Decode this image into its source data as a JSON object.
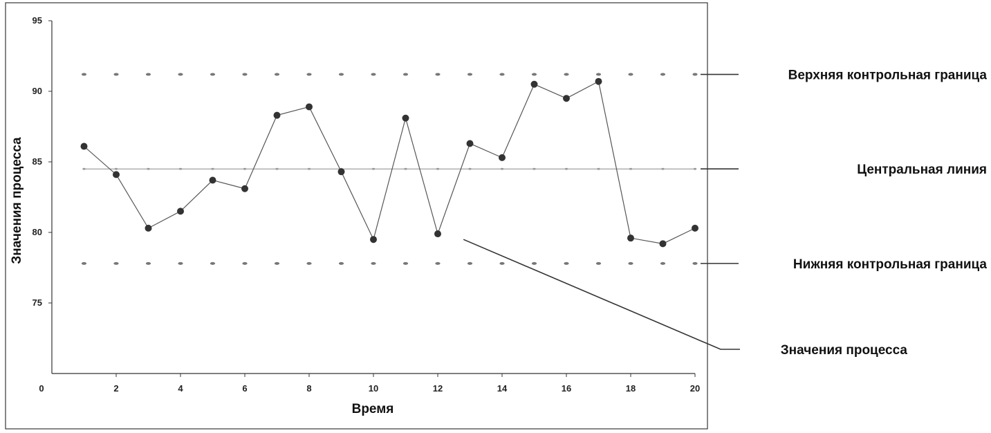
{
  "chart_data": {
    "type": "line",
    "title": "",
    "xlabel": "Время",
    "ylabel": "Значения процесса",
    "xlim": [
      0,
      20
    ],
    "ylim": [
      70,
      95
    ],
    "x_ticks": [
      "0",
      "2",
      "4",
      "6",
      "8",
      "10",
      "12",
      "14",
      "16",
      "18",
      "20"
    ],
    "y_ticks": [
      "95",
      "90",
      "85",
      "80",
      "75"
    ],
    "grid": false,
    "series": [
      {
        "name": "Значения процесса",
        "style": "line-with-markers",
        "color": "#555555",
        "x": [
          1,
          2,
          3,
          4,
          5,
          6,
          7,
          8,
          9,
          10,
          11,
          12,
          13,
          14,
          15,
          16,
          17,
          18,
          19,
          20
        ],
        "values": [
          86.1,
          84.1,
          80.3,
          81.5,
          83.7,
          83.1,
          88.3,
          88.9,
          84.3,
          79.5,
          88.1,
          79.9,
          86.3,
          85.3,
          90.5,
          89.5,
          90.7,
          79.6,
          79.2,
          80.3
        ]
      },
      {
        "name": "Верхняя контрольная граница",
        "style": "dotted",
        "color": "#777777",
        "x": [
          1,
          2,
          3,
          4,
          5,
          6,
          7,
          8,
          9,
          10,
          11,
          12,
          13,
          14,
          15,
          16,
          17,
          18,
          19,
          20
        ],
        "values": [
          91.2,
          91.2,
          91.2,
          91.2,
          91.2,
          91.2,
          91.2,
          91.2,
          91.2,
          91.2,
          91.2,
          91.2,
          91.2,
          91.2,
          91.2,
          91.2,
          91.2,
          91.2,
          91.2,
          91.2
        ]
      },
      {
        "name": "Центральная линия",
        "style": "solid-thin",
        "color": "#888888",
        "x": [
          1,
          2,
          3,
          4,
          5,
          6,
          7,
          8,
          9,
          10,
          11,
          12,
          13,
          14,
          15,
          16,
          17,
          18,
          19,
          20
        ],
        "values": [
          84.5,
          84.5,
          84.5,
          84.5,
          84.5,
          84.5,
          84.5,
          84.5,
          84.5,
          84.5,
          84.5,
          84.5,
          84.5,
          84.5,
          84.5,
          84.5,
          84.5,
          84.5,
          84.5,
          84.5
        ]
      },
      {
        "name": "Нижняя контрольная граница",
        "style": "dotted",
        "color": "#777777",
        "x": [
          1,
          2,
          3,
          4,
          5,
          6,
          7,
          8,
          9,
          10,
          11,
          12,
          13,
          14,
          15,
          16,
          17,
          18,
          19,
          20
        ],
        "values": [
          77.8,
          77.8,
          77.8,
          77.8,
          77.8,
          77.8,
          77.8,
          77.8,
          77.8,
          77.8,
          77.8,
          77.8,
          77.8,
          77.8,
          77.8,
          77.8,
          77.8,
          77.8,
          77.8,
          77.8
        ]
      }
    ],
    "annotations": [
      {
        "text": "Верхняя контрольная граница",
        "target_series": "Верхняя контрольная граница"
      },
      {
        "text": "Центральная линия",
        "target_series": "Центральная линия"
      },
      {
        "text": "Нижняя контрольная граница",
        "target_series": "Нижняя контрольная граница"
      },
      {
        "text": "Значения процесса",
        "target_series": "Значения процесса",
        "target_point_x": 12.8
      }
    ]
  }
}
